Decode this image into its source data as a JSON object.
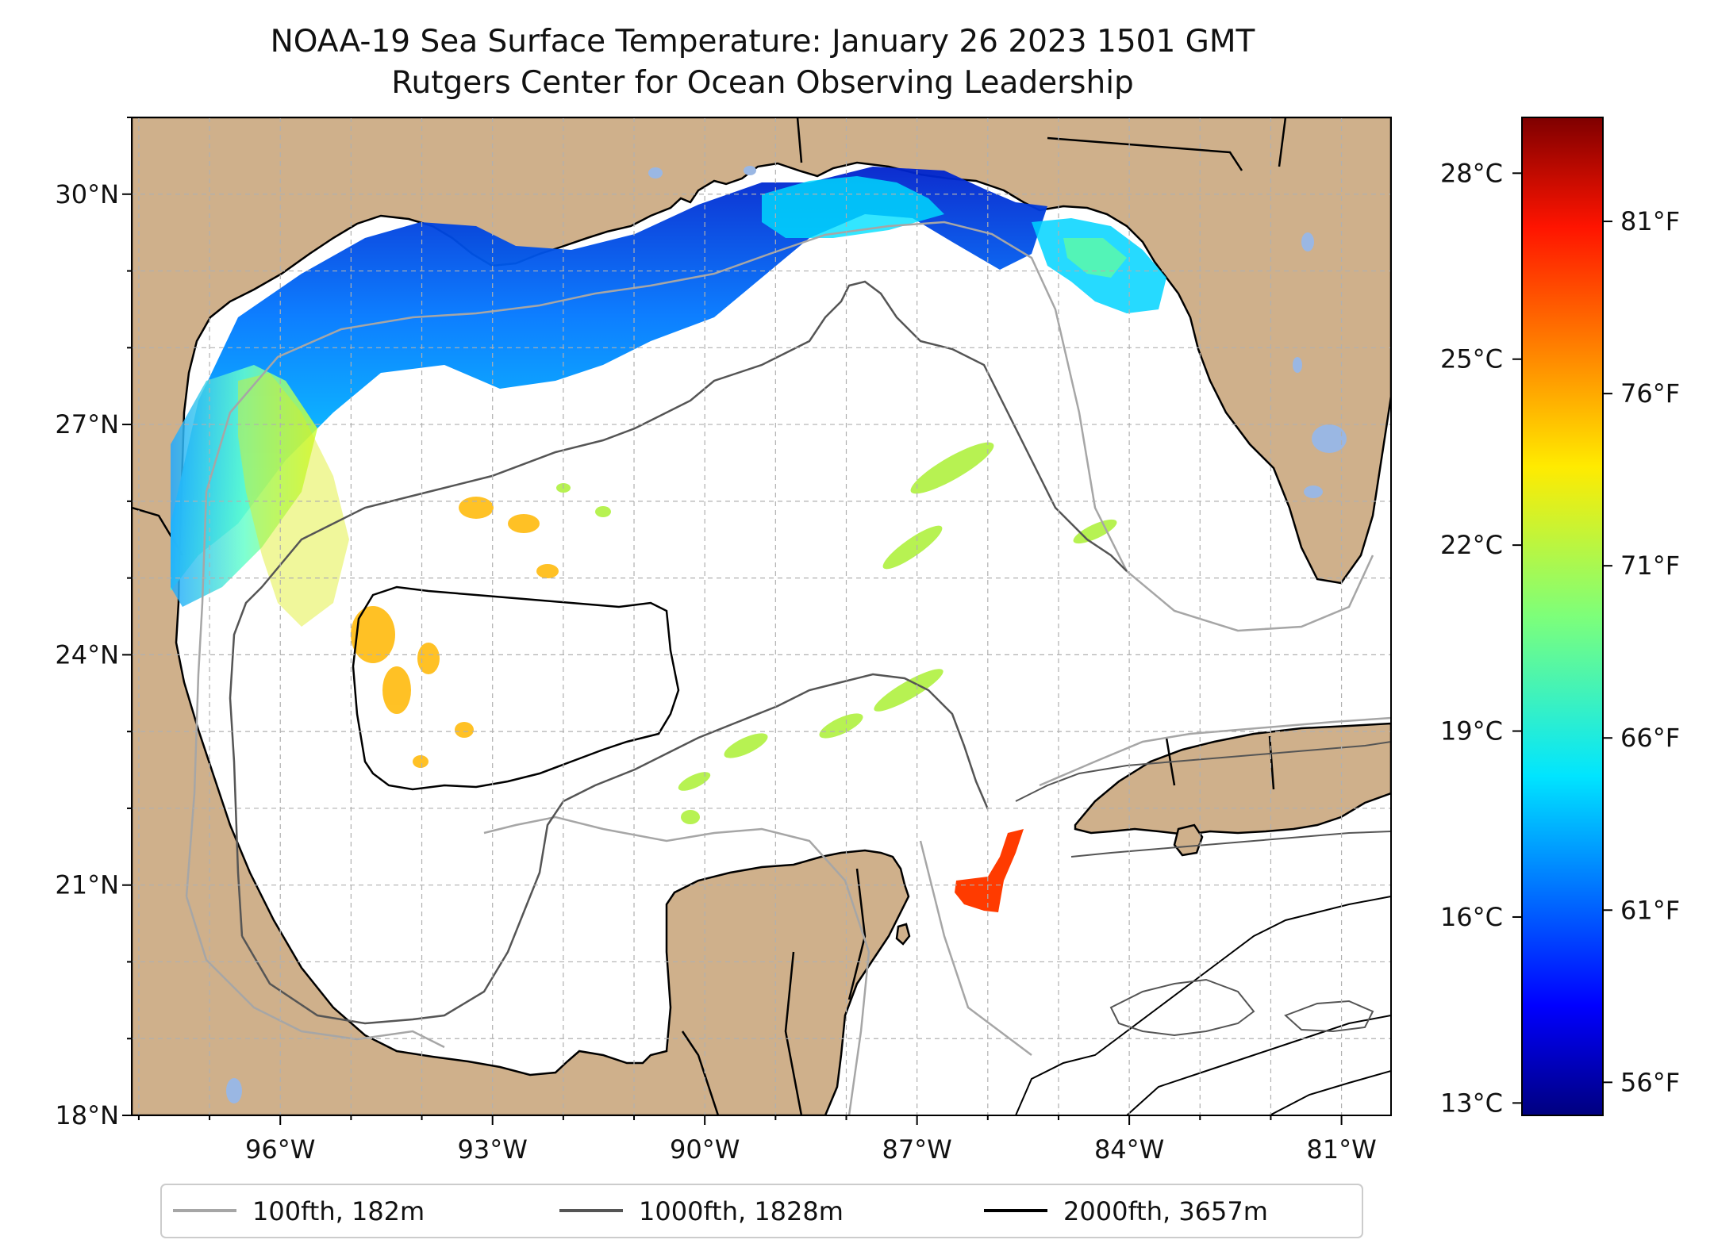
{
  "title": "NOAA-19 Sea Surface Temperature: January 26 2023 1501 GMT",
  "subtitle": "Rutgers Center for Ocean Observing Leadership",
  "map": {
    "lon_range": [
      -98.1,
      -80.3
    ],
    "lat_range": [
      18.0,
      31.0
    ],
    "lon_ticks": [
      {
        "value": -96,
        "label": "96°W"
      },
      {
        "value": -93,
        "label": "93°W"
      },
      {
        "value": -90,
        "label": "90°W"
      },
      {
        "value": -87,
        "label": "87°W"
      },
      {
        "value": -84,
        "label": "84°W"
      },
      {
        "value": -81,
        "label": "81°W"
      }
    ],
    "lat_ticks": [
      {
        "value": 30,
        "label": "30°N"
      },
      {
        "value": 27,
        "label": "27°N"
      },
      {
        "value": 24,
        "label": "24°N"
      },
      {
        "value": 21,
        "label": "21°N"
      },
      {
        "value": 18,
        "label": "18°N"
      }
    ],
    "grid": true,
    "colors": {
      "land": "#cfb08b",
      "ocean": "#ffffff",
      "lakes": "#9ab7e3",
      "grid": "#b0b0b0"
    }
  },
  "colorbar": {
    "colormap": "jet",
    "range_c": [
      12.8,
      28.9
    ],
    "celsius_ticks": [
      {
        "value": 28,
        "label": "28°C"
      },
      {
        "value": 25,
        "label": "25°C"
      },
      {
        "value": 22,
        "label": "22°C"
      },
      {
        "value": 19,
        "label": "19°C"
      },
      {
        "value": 16,
        "label": "16°C"
      },
      {
        "value": 13,
        "label": "13°C"
      }
    ],
    "fahrenheit_ticks": [
      {
        "value": 81,
        "label": "81°F"
      },
      {
        "value": 76,
        "label": "76°F"
      },
      {
        "value": 71,
        "label": "71°F"
      },
      {
        "value": 66,
        "label": "66°F"
      },
      {
        "value": 61,
        "label": "61°F"
      },
      {
        "value": 56,
        "label": "56°F"
      }
    ]
  },
  "legend": {
    "placement": "bottom",
    "items": [
      {
        "label": "100fth, 182m",
        "color": "#a6a6a6"
      },
      {
        "label": "1000fth, 1828m",
        "color": "#555555"
      },
      {
        "label": "2000fth, 3657m",
        "color": "#000000"
      }
    ]
  }
}
